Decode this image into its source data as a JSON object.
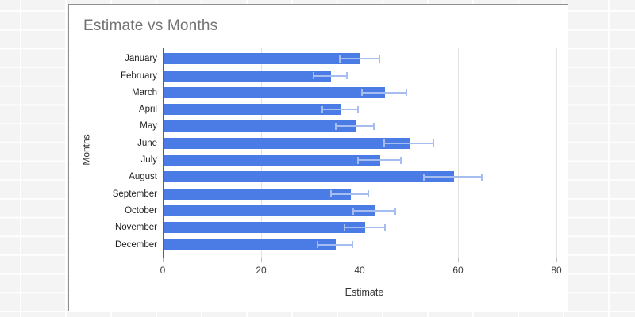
{
  "chart_data": {
    "type": "bar",
    "orientation": "horizontal",
    "title": "Estimate vs Months",
    "xlabel": "Estimate",
    "ylabel": "Months",
    "categories": [
      "January",
      "February",
      "March",
      "April",
      "May",
      "June",
      "July",
      "August",
      "September",
      "October",
      "November",
      "December"
    ],
    "series": [
      {
        "name": "Estimate",
        "values": [
          40,
          34,
          45,
          36,
          39,
          50,
          44,
          59,
          38,
          43,
          41,
          35
        ]
      }
    ],
    "error_bars": {
      "type": "percent",
      "value": 10
    },
    "xlim": [
      0,
      80
    ],
    "xticks": [
      0,
      20,
      40,
      60,
      80
    ],
    "grid": true,
    "legend": "none",
    "colors": {
      "bar": "#4b7be5",
      "error_bar": "#a7bdf0",
      "gridline": "#e3e3e3",
      "axis_line": "#616161",
      "title_text": "#737373",
      "category_text": "#1f1f1f",
      "tick_text": "#3c3c3c",
      "axis_title_text": "#333333"
    }
  }
}
